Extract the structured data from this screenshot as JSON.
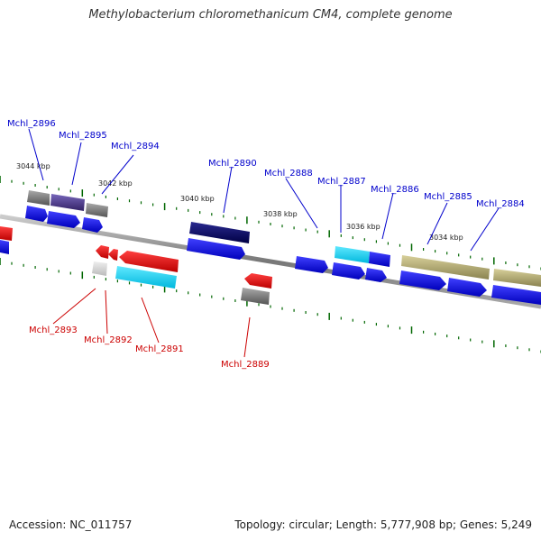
{
  "title": "Methylobacterium chloromethanicum CM4, complete genome",
  "footer": {
    "accession": "Accession: NC_011757",
    "summary": "Topology: circular; Length: 5,777,908 bp; Genes: 5,249"
  },
  "scale_labels": [
    "3044 kbp",
    "3042 kbp",
    "3040 kbp",
    "3038 kbp",
    "3036 kbp",
    "3034 kbp"
  ],
  "gene_labels": {
    "top": [
      "Mchl_2896",
      "Mchl_2895",
      "Mchl_2894",
      "Mchl_2890",
      "Mchl_2888",
      "Mchl_2887",
      "Mchl_2886",
      "Mchl_2885",
      "Mchl_2884"
    ],
    "bottom": [
      "Mchl_2893",
      "Mchl_2892",
      "Mchl_2891",
      "Mchl_2889"
    ]
  },
  "colors": {
    "forward_label": "#0000cc",
    "reverse_label": "#cc0000",
    "forward_gene": "#0000ee",
    "reverse_gene": "#ee0000",
    "highlight": "#00ccee",
    "dark_gene": "#000066",
    "purple_gene": "#443388",
    "khaki_gene": "#b5ac6c",
    "grey_gene": "#777777",
    "tick": "#006600",
    "backbone": "#888888"
  }
}
